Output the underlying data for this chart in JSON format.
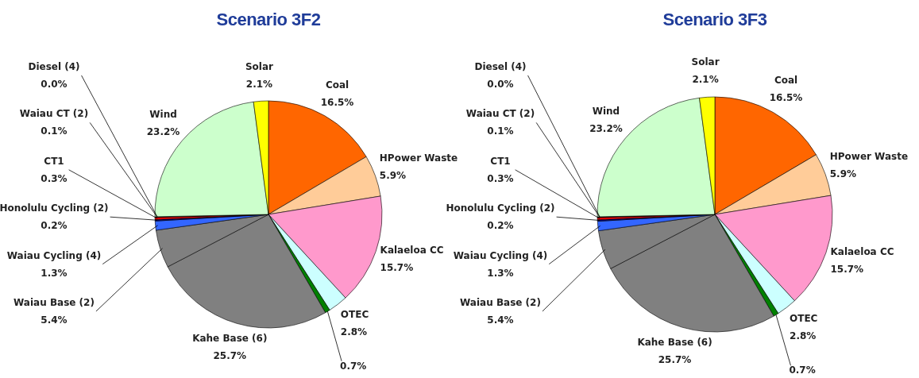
{
  "chart_data": [
    {
      "type": "pie",
      "title": "Scenario 3F2",
      "categories": [
        "Coal",
        "HPower Waste",
        "Kalaeloa CC",
        "OTEC",
        null,
        "Kahe Base (6)",
        "Waiau Base (2)",
        "Waiau Cycling (4)",
        "Honolulu Cycling (2)",
        "CT1",
        "Waiau CT (2)",
        "Diesel (4)",
        "Wind",
        "Solar"
      ],
      "values": [
        16.5,
        5.9,
        15.7,
        2.8,
        0.7,
        25.7,
        5.4,
        1.3,
        0.2,
        0.3,
        0.1,
        0.0,
        23.2,
        2.1
      ],
      "value_labels": [
        "16.5%",
        "5.9%",
        "15.7%",
        "2.8%",
        "0.7%",
        "25.7%",
        "5.4%",
        "1.3%",
        "0.2%",
        "0.3%",
        "0.1%",
        "0.0%",
        "23.2%",
        "2.1%"
      ],
      "colors": [
        "#ff6600",
        "#ffcc99",
        "#ff99cc",
        "#ccffff",
        "#008000",
        "#808080",
        "#808080",
        "#3366ff",
        "#000080",
        "#ff0000",
        "#800000",
        "#000000",
        "#ccffcc",
        "#ffff00"
      ],
      "legend": false
    },
    {
      "type": "pie",
      "title": "Scenario 3F3",
      "categories": [
        "Coal",
        "HPower Waste",
        "Kalaeloa CC",
        "OTEC",
        null,
        "Kahe Base (6)",
        "Waiau Base (2)",
        "Waiau Cycling (4)",
        "Honolulu Cycling (2)",
        "CT1",
        "Waiau CT (2)",
        "Diesel (4)",
        "Wind",
        "Solar"
      ],
      "values": [
        16.5,
        5.9,
        15.7,
        2.8,
        0.7,
        25.7,
        5.4,
        1.3,
        0.2,
        0.3,
        0.1,
        0.0,
        23.2,
        2.1
      ],
      "value_labels": [
        "16.5%",
        "5.9%",
        "15.7%",
        "2.8%",
        "0.7%",
        "25.7%",
        "5.4%",
        "1.3%",
        "0.2%",
        "0.3%",
        "0.1%",
        "0.0%",
        "23.2%",
        "2.1%"
      ],
      "colors": [
        "#ff6600",
        "#ffcc99",
        "#ff99cc",
        "#ccffff",
        "#008000",
        "#808080",
        "#808080",
        "#3366ff",
        "#000080",
        "#ff0000",
        "#800000",
        "#000000",
        "#ccffcc",
        "#ffff00"
      ],
      "legend": false
    }
  ]
}
